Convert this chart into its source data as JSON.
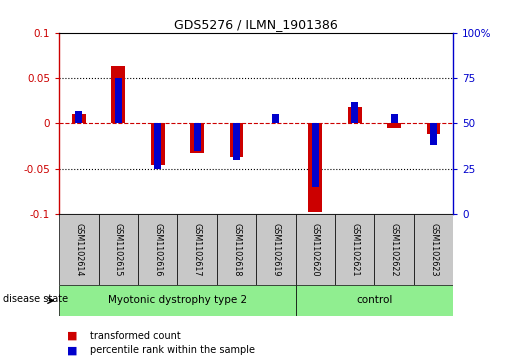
{
  "title": "GDS5276 / ILMN_1901386",
  "samples": [
    "GSM1102614",
    "GSM1102615",
    "GSM1102616",
    "GSM1102617",
    "GSM1102618",
    "GSM1102619",
    "GSM1102620",
    "GSM1102621",
    "GSM1102622",
    "GSM1102623"
  ],
  "red_values": [
    0.01,
    0.063,
    -0.046,
    -0.033,
    -0.037,
    0.0,
    -0.098,
    0.018,
    -0.005,
    -0.012
  ],
  "blue_values_pct": [
    57,
    75,
    25,
    35,
    30,
    55,
    15,
    62,
    55,
    38
  ],
  "ylim_left": [
    -0.1,
    0.1
  ],
  "ylim_right": [
    0,
    100
  ],
  "yticks_left": [
    -0.1,
    -0.05,
    0,
    0.05,
    0.1
  ],
  "yticks_right": [
    0,
    25,
    50,
    75,
    100
  ],
  "groups": [
    {
      "label": "Myotonic dystrophy type 2",
      "start": 0,
      "end": 6,
      "color": "#90EE90"
    },
    {
      "label": "control",
      "start": 6,
      "end": 10,
      "color": "#90EE90"
    }
  ],
  "disease_state_label": "disease state",
  "legend_red": "transformed count",
  "legend_blue": "percentile rank within the sample",
  "red_color": "#CC0000",
  "blue_color": "#0000CC",
  "sample_box_color": "#C8C8C8",
  "zero_line_color": "#CC0000",
  "grid_color": "#000000"
}
